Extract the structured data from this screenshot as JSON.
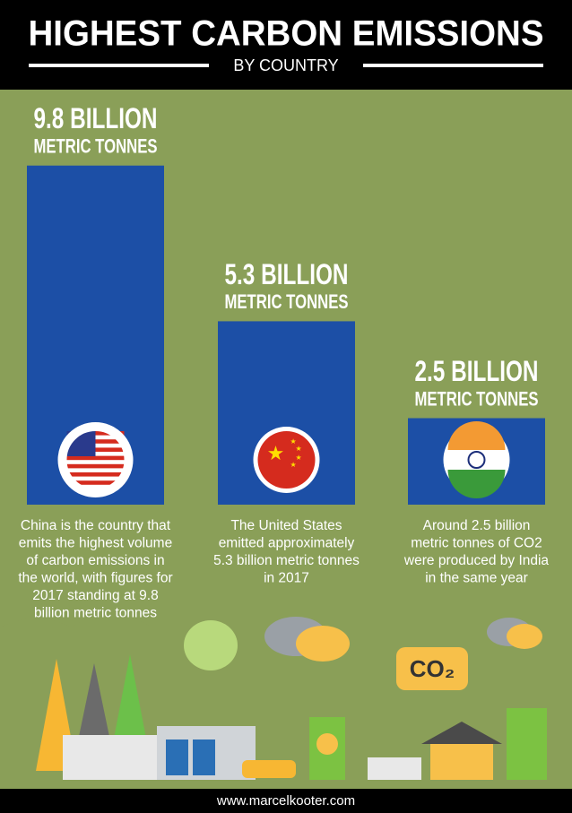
{
  "chart_data": {
    "type": "bar",
    "title": "HIGHEST CARBON EMISSIONS",
    "subtitle": "BY COUNTRY",
    "categories": [
      null,
      null,
      null
    ],
    "values": [
      9.8,
      5.3,
      2.5
    ],
    "value_labels": [
      "9.8 BILLION",
      "5.3 BILLION",
      "2.5 BILLION"
    ],
    "unit_labels": [
      "METRIC TONNES",
      "METRIC TONNES",
      "METRIC TONNES"
    ],
    "color": "#1c4fa6",
    "descriptions": [
      [
        "China is the country that",
        "emits the highest volume",
        "of carbon emissions in",
        "the world, with figures for",
        "2017 standing at 9.8",
        "billion metric tonnes"
      ],
      [
        "The United States",
        "emitted approximately",
        "5.3 billion metric tonnes",
        "in 2017"
      ],
      [
        "Around 2.5 billion",
        "metric tonnes of CO2",
        "were produced by India",
        "in the same year"
      ]
    ],
    "badge": "CO₂",
    "footer": "www.marcelkooter.com"
  }
}
